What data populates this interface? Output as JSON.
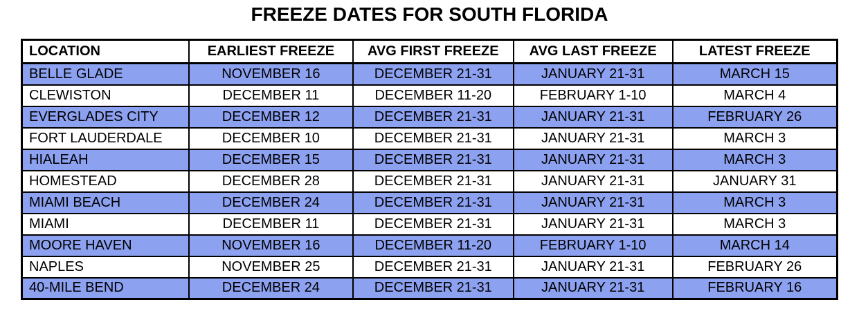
{
  "title": "FREEZE DATES FOR SOUTH FLORIDA",
  "colors": {
    "row_highlight": "#8DA1F1",
    "row_plain": "#FFFFFF",
    "border": "#000000",
    "text": "#000000",
    "background": "#FFFFFF"
  },
  "chart_data": {
    "type": "table",
    "title": "FREEZE DATES FOR SOUTH FLORIDA",
    "columns": [
      "LOCATION",
      "EARLIEST FREEZE",
      "AVG FIRST FREEZE",
      "AVG LAST FREEZE",
      "LATEST FREEZE"
    ],
    "rows": [
      {
        "highlighted": true,
        "cells": [
          "BELLE GLADE",
          "NOVEMBER 16",
          "DECEMBER 21-31",
          "JANUARY 21-31",
          "MARCH 15"
        ]
      },
      {
        "highlighted": false,
        "cells": [
          "CLEWISTON",
          "DECEMBER 11",
          "DECEMBER 11-20",
          "FEBRUARY 1-10",
          "MARCH 4"
        ]
      },
      {
        "highlighted": true,
        "cells": [
          "EVERGLADES CITY",
          "DECEMBER 12",
          "DECEMBER 21-31",
          "JANUARY 21-31",
          "FEBRUARY 26"
        ]
      },
      {
        "highlighted": false,
        "cells": [
          "FORT LAUDERDALE",
          "DECEMBER 10",
          "DECEMBER 21-31",
          "JANUARY 21-31",
          "MARCH 3"
        ]
      },
      {
        "highlighted": true,
        "cells": [
          "HIALEAH",
          "DECEMBER 15",
          "DECEMBER 21-31",
          "JANUARY 21-31",
          "MARCH 3"
        ]
      },
      {
        "highlighted": false,
        "cells": [
          "HOMESTEAD",
          "DECEMBER 28",
          "DECEMBER 21-31",
          "JANUARY 21-31",
          "JANUARY 31"
        ]
      },
      {
        "highlighted": true,
        "cells": [
          "MIAMI BEACH",
          "DECEMBER 24",
          "DECEMBER 21-31",
          "JANUARY 21-31",
          "MARCH 3"
        ]
      },
      {
        "highlighted": false,
        "cells": [
          "MIAMI",
          "DECEMBER 11",
          "DECEMBER 21-31",
          "JANUARY 21-31",
          "MARCH 3"
        ]
      },
      {
        "highlighted": true,
        "cells": [
          "MOORE HAVEN",
          "NOVEMBER 16",
          "DECEMBER 11-20",
          "FEBRUARY 1-10",
          "MARCH 14"
        ]
      },
      {
        "highlighted": false,
        "cells": [
          "NAPLES",
          "NOVEMBER 25",
          "DECEMBER 21-31",
          "JANUARY 21-31",
          "FEBRUARY 26"
        ]
      },
      {
        "highlighted": true,
        "cells": [
          "40-MILE BEND",
          "DECEMBER 24",
          "DECEMBER 21-31",
          "JANUARY 21-31",
          "FEBRUARY 16"
        ]
      }
    ]
  }
}
